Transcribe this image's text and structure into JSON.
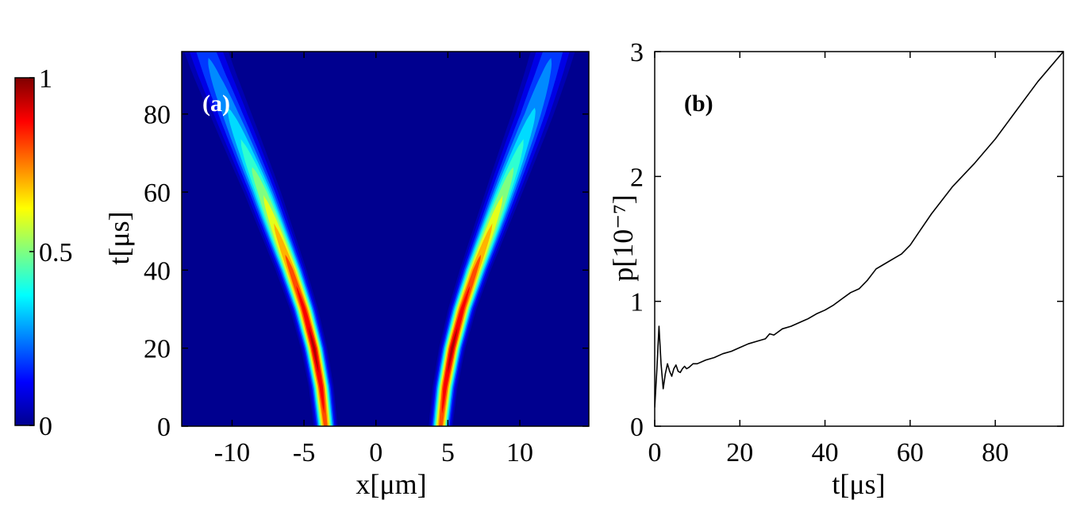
{
  "chart_data": [
    {
      "type": "heatmap",
      "panel_label": "(a)",
      "panel_label_color": "#ffffff",
      "xlabel": "x[μm]",
      "ylabel": "t[μs]",
      "xlim": [
        -13.5,
        14.8
      ],
      "ylim": [
        0,
        96
      ],
      "xticks": [
        -10,
        -5,
        0,
        5,
        10
      ],
      "xtick_labels": [
        "-10",
        "-5",
        "0",
        "5",
        "10"
      ],
      "yticks": [
        0,
        20,
        40,
        60,
        80
      ],
      "ytick_labels": [
        "0",
        "20",
        "40",
        "60",
        "80"
      ],
      "colormap": "jet",
      "background_color": "#00008f",
      "color_range": [
        0,
        1
      ],
      "colorbar": {
        "ticks": [
          0,
          0.5,
          1
        ],
        "tick_labels": [
          "0",
          "0.5",
          "1"
        ]
      },
      "series": [
        {
          "name": "left beam",
          "t": [
            0,
            10,
            20,
            30,
            40,
            50,
            60,
            70,
            80,
            90,
            96
          ],
          "x_center": [
            -3.5,
            -3.8,
            -4.3,
            -5.0,
            -5.9,
            -6.9,
            -7.9,
            -9.0,
            -10.1,
            -11.2,
            -11.8
          ],
          "peak_intensity": [
            0.85,
            0.93,
            0.98,
            0.92,
            0.85,
            0.72,
            0.58,
            0.45,
            0.35,
            0.28,
            0.25
          ],
          "width": [
            0.45,
            0.46,
            0.48,
            0.52,
            0.58,
            0.66,
            0.75,
            0.85,
            0.95,
            1.05,
            1.1
          ]
        },
        {
          "name": "right beam",
          "t": [
            0,
            10,
            20,
            30,
            40,
            50,
            60,
            70,
            80,
            90,
            96
          ],
          "x_center": [
            4.5,
            4.8,
            5.3,
            6.0,
            6.9,
            7.9,
            8.9,
            9.9,
            10.9,
            11.8,
            12.3
          ],
          "peak_intensity": [
            0.85,
            0.93,
            0.98,
            0.92,
            0.85,
            0.72,
            0.58,
            0.45,
            0.35,
            0.28,
            0.25
          ],
          "width": [
            0.45,
            0.46,
            0.48,
            0.52,
            0.58,
            0.66,
            0.75,
            0.85,
            0.95,
            1.05,
            1.1
          ]
        }
      ]
    },
    {
      "type": "line",
      "panel_label": "(b)",
      "panel_label_color": "#000000",
      "xlabel": "t[μs]",
      "ylabel": "p[10⁻⁷]",
      "xlim": [
        0,
        96
      ],
      "ylim": [
        0,
        3
      ],
      "xticks": [
        0,
        20,
        40,
        60,
        80
      ],
      "xtick_labels": [
        "0",
        "20",
        "40",
        "60",
        "80"
      ],
      "yticks": [
        0,
        1,
        2,
        3
      ],
      "ytick_labels": [
        "0",
        "1",
        "2",
        "3"
      ],
      "line_color": "#000000",
      "series": [
        {
          "name": "p(t)",
          "x": [
            0,
            0.5,
            1,
            1.5,
            2,
            2.5,
            3,
            3.5,
            4,
            4.5,
            5,
            5.5,
            6,
            6.5,
            7,
            7.5,
            8,
            9,
            10,
            12,
            14,
            16,
            18,
            20,
            22,
            24,
            26,
            27,
            28,
            30,
            32,
            34,
            36,
            38,
            40,
            42,
            44,
            46,
            48,
            50,
            52,
            54,
            56,
            58,
            60,
            62,
            65,
            70,
            75,
            80,
            85,
            90,
            96
          ],
          "y": [
            0.15,
            0.45,
            0.8,
            0.5,
            0.3,
            0.42,
            0.5,
            0.44,
            0.4,
            0.46,
            0.49,
            0.44,
            0.43,
            0.46,
            0.48,
            0.46,
            0.47,
            0.5,
            0.5,
            0.53,
            0.55,
            0.58,
            0.6,
            0.63,
            0.66,
            0.68,
            0.7,
            0.74,
            0.73,
            0.78,
            0.8,
            0.83,
            0.86,
            0.9,
            0.93,
            0.97,
            1.02,
            1.07,
            1.1,
            1.17,
            1.26,
            1.3,
            1.34,
            1.38,
            1.45,
            1.55,
            1.7,
            1.92,
            2.1,
            2.3,
            2.53,
            2.76,
            3.0
          ]
        }
      ]
    }
  ]
}
